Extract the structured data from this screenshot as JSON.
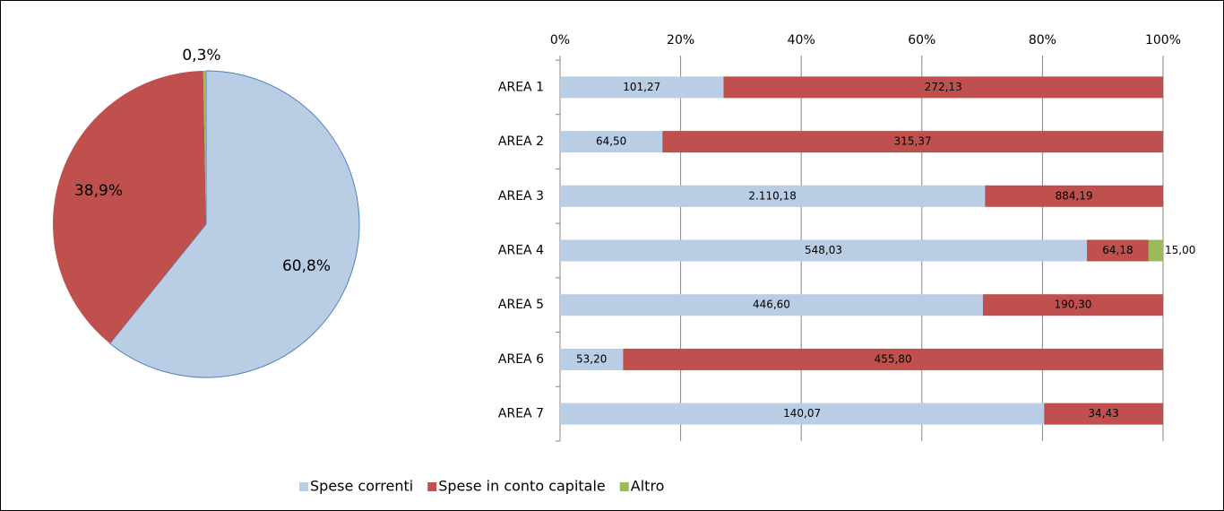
{
  "chart_data": [
    {
      "type": "pie",
      "values": [
        60.8,
        38.9,
        0.3
      ],
      "value_labels": [
        "60,8%",
        "38,9%",
        "0,3%"
      ],
      "colors": [
        "#b9cde5",
        "#c0504d",
        "#9bbb59"
      ]
    },
    {
      "type": "stacked_bar_horizontal_percent",
      "categories": [
        "AREA 1",
        "AREA 2",
        "AREA 3",
        "AREA 4",
        "AREA 5",
        "AREA 6",
        "AREA 7"
      ],
      "series": [
        {
          "name": "Spese correnti",
          "color": "#b9cde5",
          "values": [
            101.27,
            64.5,
            2110.18,
            548.03,
            446.6,
            53.2,
            140.07
          ],
          "value_labels": [
            "101,27",
            "64,50",
            "2.110,18",
            "548,03",
            "446,60",
            "53,20",
            "140,07"
          ]
        },
        {
          "name": "Spese in conto capitale",
          "color": "#c0504d",
          "values": [
            272.13,
            315.37,
            884.19,
            64.18,
            190.3,
            455.8,
            34.43
          ],
          "value_labels": [
            "272,13",
            "315,37",
            "884,19",
            "64,18",
            "190,30",
            "455,80",
            "34,43"
          ]
        },
        {
          "name": "Altro",
          "color": "#9bbb59",
          "values": [
            null,
            null,
            null,
            15.0,
            null,
            null,
            null
          ],
          "value_labels": [
            null,
            null,
            null,
            "15,00",
            null,
            null,
            null
          ]
        }
      ],
      "xlim": [
        0,
        100
      ],
      "xticks": [
        {
          "value": 0,
          "label": "0%"
        },
        {
          "value": 20,
          "label": "20%"
        },
        {
          "value": 40,
          "label": "40%"
        },
        {
          "value": 60,
          "label": "60%"
        },
        {
          "value": 80,
          "label": "80%"
        },
        {
          "value": 100,
          "label": "100%"
        }
      ],
      "grid": true,
      "legend": "bottom"
    }
  ]
}
